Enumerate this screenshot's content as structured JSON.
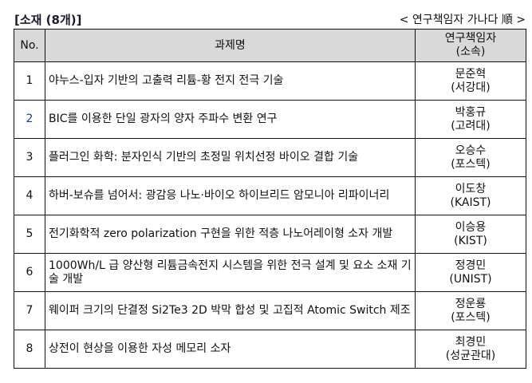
{
  "caption": "[소재 (8개)]",
  "order_note": "< 연구책임자 가나다 順 >",
  "header": {
    "no": "No.",
    "title": "과제명",
    "researcher": "연구책임자",
    "affiliation": "(소속)"
  },
  "rows": [
    {
      "no": "1",
      "title": "야누스-입자 기반의 고출력 리튬-황 전지 전극 기술",
      "researcher": "문준혁",
      "affiliation": "(서강대)"
    },
    {
      "no": "2",
      "title": "BIC를 이용한 단일 광자의 양자 주파수 변환 연구",
      "researcher": "박홍규",
      "affiliation": "(고려대)"
    },
    {
      "no": "3",
      "title": "플러그인 화학: 분자인식 기반의 초정밀 위치선정 바이오 결합 기술",
      "researcher": "오승수",
      "affiliation": "(포스텍)"
    },
    {
      "no": "4",
      "title": "하버-보슈를 넘어서: 광감응 나노·바이오 하이브리드 암모니아 리파이너리",
      "researcher": "이도창",
      "affiliation": "(KAIST)"
    },
    {
      "no": "5",
      "title": "전기화학적 zero polarization 구현을 위한 적층 나노어레이형 소자 개발",
      "researcher": "이승용",
      "affiliation": "(KIST)"
    },
    {
      "no": "6",
      "title": "1000Wh/L 급 양산형 리튬금속전지 시스템을 위한 전극 설계 및 요소 소재 기술 개발",
      "researcher": "정경민",
      "affiliation": "(UNIST)"
    },
    {
      "no": "7",
      "title": "웨이퍼 크기의 단결정 Si2Te3 2D 박막 합성 및 고집적 Atomic Switch 제조",
      "researcher": "정운룡",
      "affiliation": "(포스텍)"
    },
    {
      "no": "8",
      "title": "상전이 현상을 이용한 자성 메모리 소자",
      "researcher": "최경민",
      "affiliation": "(성균관대)"
    }
  ],
  "colors": {
    "header_bg": "#d9d9d9",
    "row2_number": "#1f3a93"
  }
}
